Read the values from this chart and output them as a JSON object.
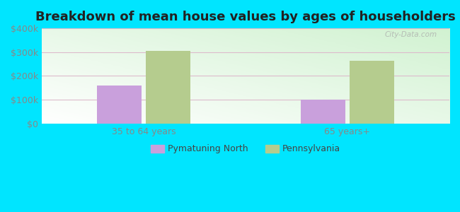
{
  "title": "Breakdown of mean house values by ages of householders",
  "categories": [
    "35 to 64 years",
    "65 years+"
  ],
  "series": {
    "Pymatuning North": [
      160000,
      100000
    ],
    "Pennsylvania": [
      305000,
      265000
    ]
  },
  "colors": {
    "Pymatuning North": "#c9a0dc",
    "Pennsylvania": "#b5cc8e"
  },
  "ylim": [
    0,
    400000
  ],
  "yticks": [
    0,
    100000,
    200000,
    300000,
    400000
  ],
  "ytick_labels": [
    "$0",
    "$100k",
    "$200k",
    "$300k",
    "$400k"
  ],
  "background_color": "#00e5ff",
  "title_fontsize": 13,
  "watermark": "City-Data.com",
  "bar_width": 0.22,
  "tick_color": "#888888",
  "grid_color": "#ddbbcc"
}
